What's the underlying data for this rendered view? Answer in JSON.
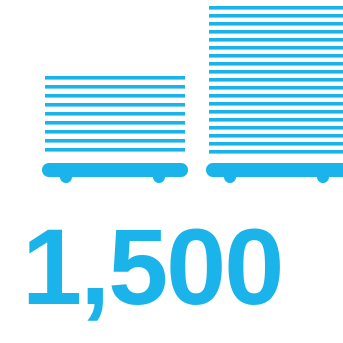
{
  "graphic": {
    "icon": "stacked-pallet-carts-icon",
    "color": "#1ab3ea"
  },
  "stat": {
    "value": "1,500"
  }
}
